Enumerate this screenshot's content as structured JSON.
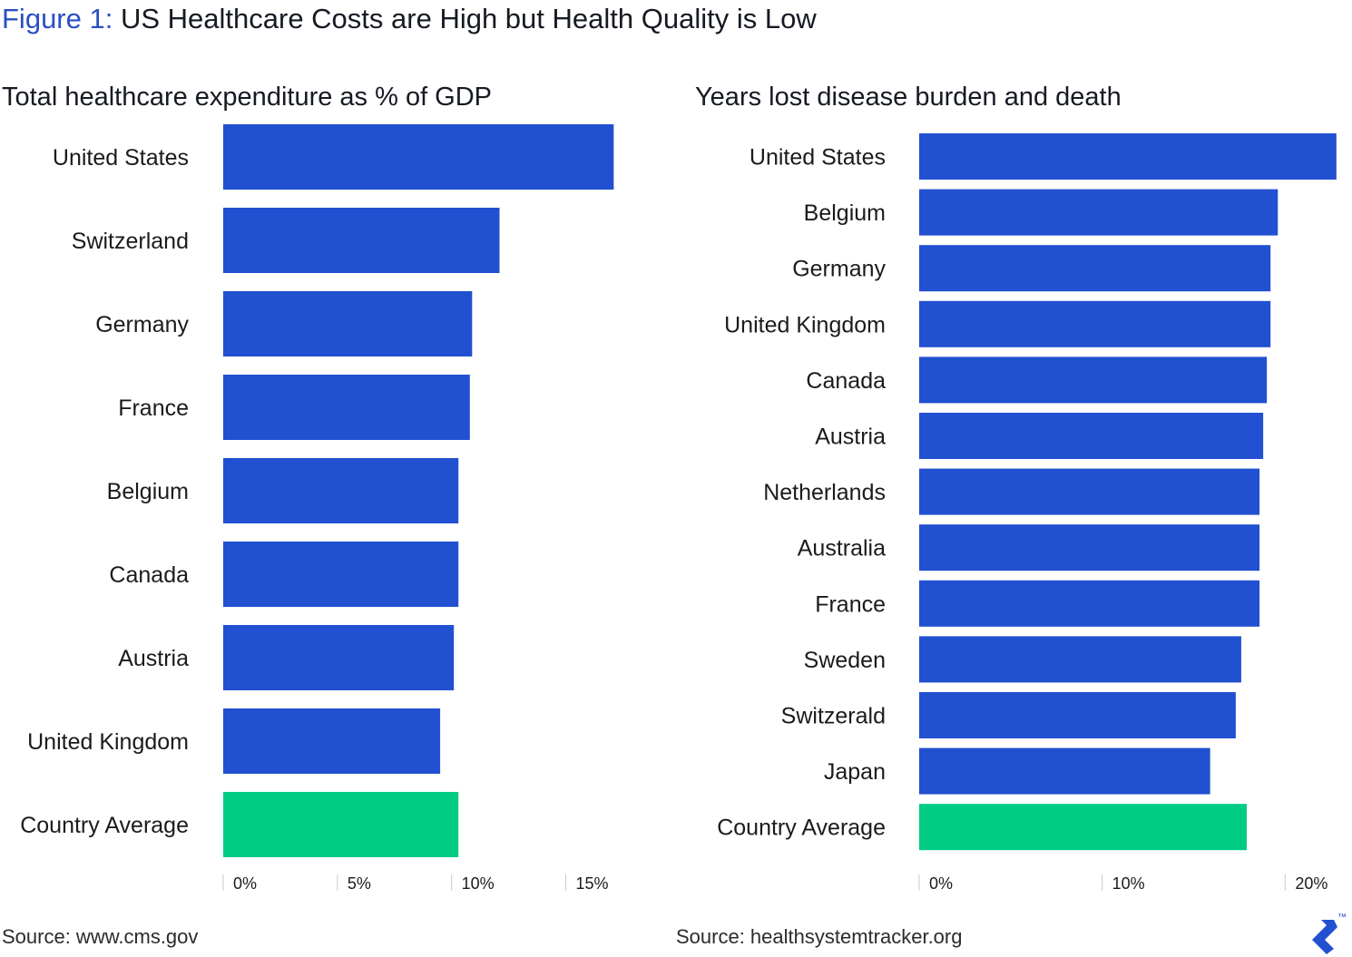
{
  "figure": {
    "label": "Figure 1:",
    "title": "US Healthcare Costs are High but Health Quality is Low"
  },
  "colors": {
    "bar": "#2150d0",
    "average": "#00cc84",
    "title_label": "#2a4fc4",
    "tick": "#cccccc"
  },
  "chart_data": [
    {
      "type": "bar",
      "orientation": "horizontal",
      "title": "Total healthcare expenditure as % of GDP",
      "categories": [
        "United States",
        "Switzerland",
        "Germany",
        "France",
        "Belgium",
        "Canada",
        "Austria",
        "United Kingdom",
        "Country Average"
      ],
      "values": [
        17.1,
        12.1,
        10.9,
        10.8,
        10.3,
        10.3,
        10.1,
        9.5,
        10.3
      ],
      "highlight_category": "Country Average",
      "xlim": [
        0,
        18
      ],
      "ticks": [
        0,
        5,
        10,
        15
      ],
      "tick_labels": [
        "0%",
        "5%",
        "10%",
        "15%"
      ],
      "xlabel": "",
      "ylabel": "",
      "grid": false,
      "source": "Source: www.cms.gov"
    },
    {
      "type": "bar",
      "orientation": "horizontal",
      "title": "Years lost disease burden and death",
      "categories": [
        "United States",
        "Belgium",
        "Germany",
        "United Kingdom",
        "Canada",
        "Austria",
        "Netherlands",
        "Australia",
        "France",
        "Sweden",
        "Switzerald",
        "Japan",
        "Country Average"
      ],
      "values": [
        22.8,
        19.6,
        19.2,
        19.2,
        19.0,
        18.8,
        18.6,
        18.6,
        18.6,
        17.6,
        17.3,
        15.9,
        17.9
      ],
      "highlight_category": "Country Average",
      "xlim": [
        0,
        24
      ],
      "ticks": [
        0,
        10,
        20
      ],
      "tick_labels": [
        "0%",
        "10%",
        "20%"
      ],
      "xlabel": "",
      "ylabel": "",
      "grid": false,
      "source": "Source: healthsystemtracker.org"
    }
  ],
  "logo": {
    "icon": "brand-logo-icon",
    "mark": "™"
  }
}
